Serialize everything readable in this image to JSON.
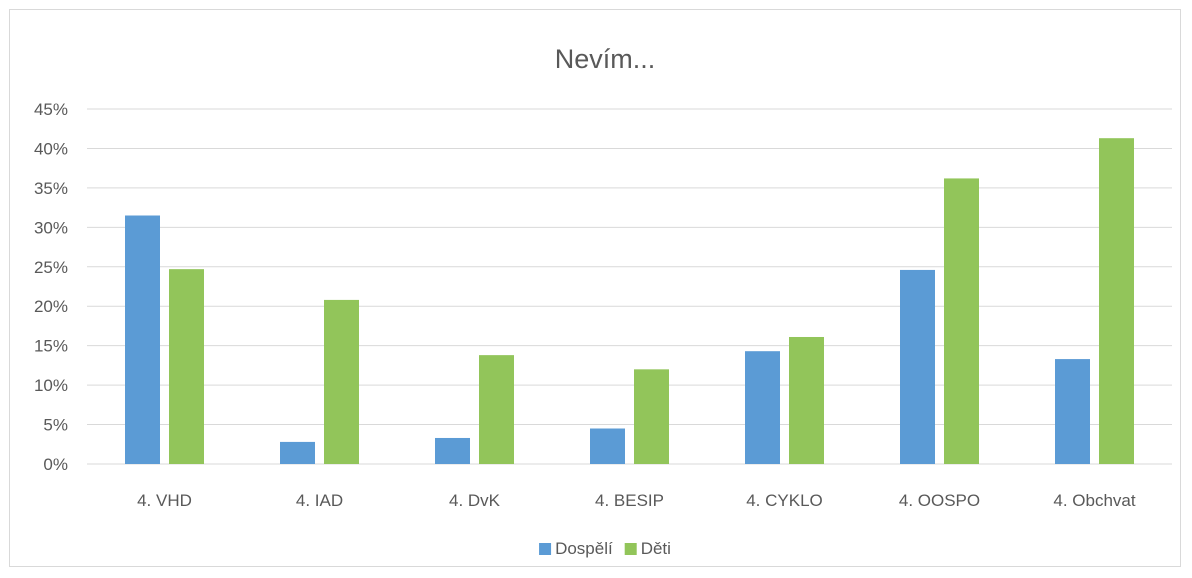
{
  "chart_data": {
    "type": "bar",
    "title": "Nevím...",
    "xlabel": "",
    "ylabel": "",
    "categories": [
      "4. VHD",
      "4. IAD",
      "4. DvK",
      "4. BESIP",
      "4. CYKLO",
      "4. OOSPO",
      "4. Obchvat"
    ],
    "series": [
      {
        "name": "Dospělí",
        "color": "#5b9bd5",
        "values": [
          31.5,
          2.8,
          3.3,
          4.5,
          14.3,
          24.6,
          13.3
        ]
      },
      {
        "name": "Děti",
        "color": "#92c55a",
        "values": [
          24.7,
          20.8,
          13.8,
          12.0,
          16.1,
          36.2,
          41.3
        ]
      }
    ],
    "ylim": [
      0,
      45
    ],
    "yticks": [
      "0%",
      "5%",
      "10%",
      "15%",
      "20%",
      "25%",
      "30%",
      "35%",
      "40%",
      "45%"
    ],
    "grid": true,
    "legend_position": "bottom",
    "colors": {
      "gridline": "#d9d9d9",
      "text": "#595959"
    }
  }
}
